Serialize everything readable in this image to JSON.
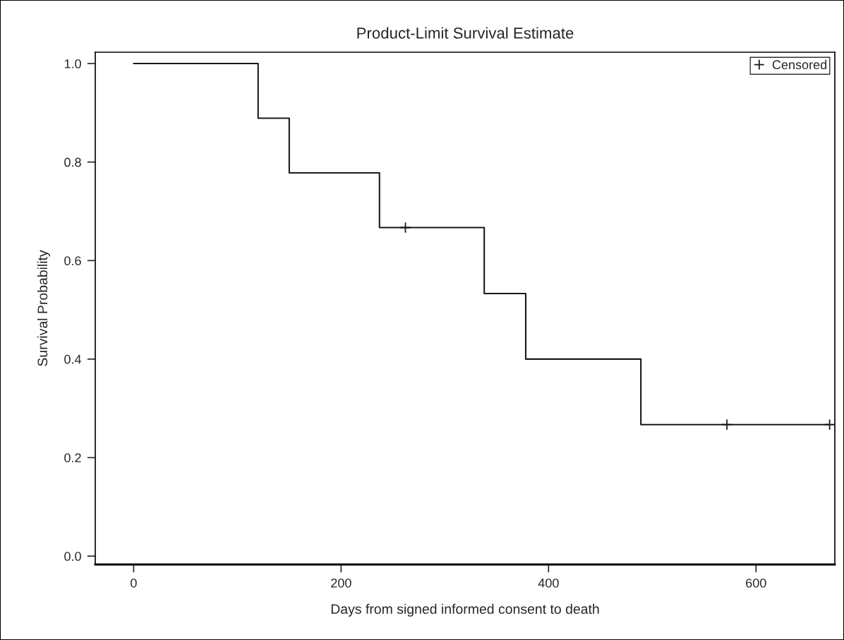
{
  "chart_data": {
    "type": "step",
    "title": "Product-Limit Survival Estimate",
    "xlabel": "Days from signed informed consent to death",
    "ylabel": "Survival Probability",
    "series": [
      {
        "color": "#1a1a1a",
        "x": [
          0,
          120,
          150,
          237,
          338,
          378,
          489,
          671
        ],
        "values": [
          1.0,
          0.889,
          0.778,
          0.667,
          0.533,
          0.4,
          0.267,
          0.267
        ]
      },
      {
        "type": "scatter",
        "name": "Censored",
        "color": "#1a1a1a",
        "marker": "cross",
        "x": [
          262,
          572,
          671
        ],
        "values": [
          0.667,
          0.267,
          0.267
        ]
      }
    ],
    "xlim": [
      -37,
      676
    ],
    "xticks": [
      0,
      200,
      400,
      600
    ],
    "ylim": [
      -0.017,
      1.023
    ],
    "yticks": [
      {
        "value": 0,
        "label": "0.0"
      },
      {
        "value": 0.2,
        "label": "0.2"
      },
      {
        "value": 0.4,
        "label": "0.4"
      },
      {
        "value": 0.6,
        "label": "0.6"
      },
      {
        "value": 0.8,
        "label": "0.8"
      },
      {
        "value": 1,
        "label": "1.0"
      }
    ],
    "grid": false,
    "legend": "top right"
  }
}
